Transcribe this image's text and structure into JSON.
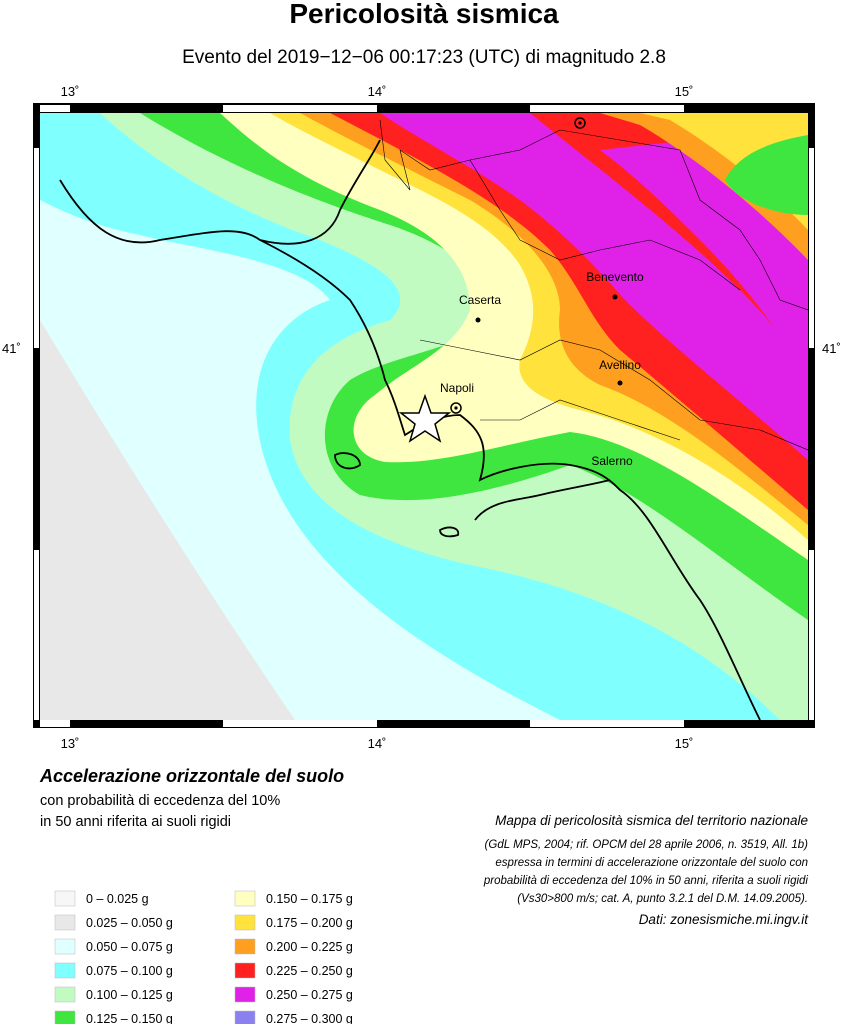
{
  "header": {
    "title": "Pericolosità sismica",
    "subtitle": "Evento del 2019−12−06 00:17:23 (UTC) di magnitudo 2.8"
  },
  "map": {
    "lon_labels": [
      "13˚",
      "14˚",
      "15˚"
    ],
    "lat_labels": [
      "41˚"
    ],
    "cities": [
      {
        "label": "Caserta"
      },
      {
        "label": "Benevento"
      },
      {
        "label": "Avellino"
      },
      {
        "label": "Napoli"
      },
      {
        "label": "Salerno"
      }
    ]
  },
  "legend": {
    "title": "Accelerazione orizzontale del suolo",
    "lines": [
      "con probabilità di eccedenza del 10%",
      "in 50 anni riferita ai suoli rigidi"
    ],
    "items": [
      {
        "label": "0 –  0.025 g",
        "color": "#f7f7f7"
      },
      {
        "label": "0.025 – 0.050 g",
        "color": "#e8e8e8"
      },
      {
        "label": "0.050 – 0.075 g",
        "color": "#e0ffff"
      },
      {
        "label": "0.075 – 0.100 g",
        "color": "#80ffff"
      },
      {
        "label": "0.100 – 0.125 g",
        "color": "#c2fbc2"
      },
      {
        "label": "0.125 – 0.150 g",
        "color": "#40e640"
      },
      {
        "label": "0.150 – 0.175 g",
        "color": "#ffffc0"
      },
      {
        "label": "0.175 – 0.200 g",
        "color": "#ffe23c"
      },
      {
        "label": "0.200 – 0.225 g",
        "color": "#ff9f1f"
      },
      {
        "label": "0.225 – 0.250 g",
        "color": "#ff2020"
      },
      {
        "label": "0.250 – 0.275 g",
        "color": "#e022e8"
      },
      {
        "label": "0.275 – 0.300 g",
        "color": "#8a80f0"
      }
    ]
  },
  "notes": {
    "lines": [
      "Mappa di pericolosità sismica del territorio nazionale",
      "(GdL MPS, 2004; rif. OPCM del 28 aprile 2006, n. 3519, All. 1b)",
      "espressa in termini di accelerazione orizzontale del suolo con",
      "probabilità di eccedenza del 10% in 50 anni, riferita a suoli rigidi",
      "(Vs30>800 m/s; cat. A, punto 3.2.1 del D.M. 14.09.2005)."
    ],
    "source": "Dati: zonesismiche.mi.ingv.it"
  }
}
